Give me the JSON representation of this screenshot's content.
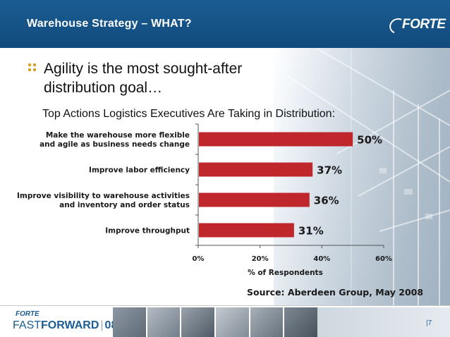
{
  "header": {
    "title": "Warehouse Strategy – WHAT?",
    "logo": "FORTE"
  },
  "bullet": {
    "icon": "four-dot-bullet-icon",
    "text": "Agility is the most sought-after distribution goal…"
  },
  "subtitle": "Top Actions Logistics Executives Are Taking in Distribution:",
  "chart_data": {
    "type": "bar",
    "orientation": "horizontal",
    "categories": [
      [
        "Make the warehouse more flexible",
        "and agile as business needs change"
      ],
      [
        "Improve labor efficiency"
      ],
      [
        "Improve visibility to warehouse activities",
        "and inventory and order status"
      ],
      [
        "Improve throughput"
      ]
    ],
    "values": [
      50,
      37,
      36,
      31
    ],
    "value_labels": [
      "50%",
      "37%",
      "36%",
      "31%"
    ],
    "xlim": [
      0,
      60
    ],
    "xticks": [
      0,
      20,
      40,
      60
    ],
    "xtick_labels": [
      "0%",
      "20%",
      "40%",
      "60%"
    ],
    "xlabel": "% of Respondents",
    "bar_color": "#c0272d",
    "grid": false,
    "legend": "none"
  },
  "source": "Source: Aberdeen Group, May 2008",
  "footer": {
    "logo": "FORTE",
    "brand_fast": "FAST",
    "brand_forward": "FORWARD",
    "brand_sep": "|",
    "brand_year": "08",
    "page_number": "|7"
  },
  "colors": {
    "header_blue": "#1b5d92",
    "bar_red": "#c0272d",
    "bullet_gold": "#d9a026"
  }
}
